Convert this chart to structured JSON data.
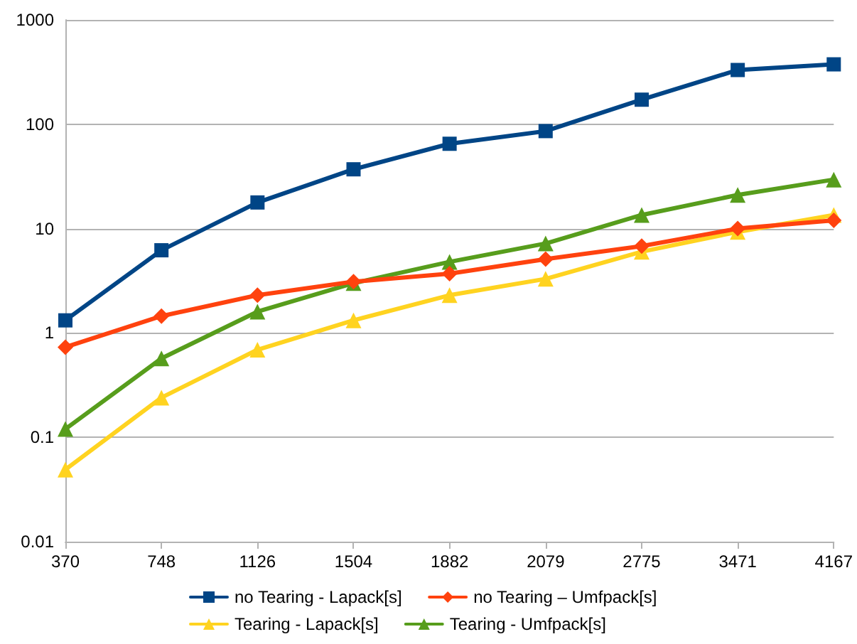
{
  "chart_data": {
    "type": "line",
    "categories": [
      "370",
      "748",
      "1126",
      "1504",
      "1882",
      "2079",
      "2775",
      "3471",
      "4167"
    ],
    "series": [
      {
        "name": "no Tearing - Lapack[s]",
        "color": "#004586",
        "marker": "square",
        "values": [
          1.32,
          6.2,
          17.8,
          37,
          65,
          86,
          172,
          331,
          375
        ]
      },
      {
        "name": "no Tearing – Umfpack[s]",
        "color": "#ff420e",
        "marker": "diamond",
        "values": [
          0.73,
          1.45,
          2.3,
          3.1,
          3.7,
          5.1,
          6.8,
          10,
          12
        ]
      },
      {
        "name": "Tearing - Lapack[s]",
        "color": "#ffd320",
        "marker": "triangle",
        "values": [
          0.049,
          0.24,
          0.69,
          1.32,
          2.3,
          3.3,
          6,
          9.3,
          13.5
        ]
      },
      {
        "name": "Tearing - Umfpack[s]",
        "color": "#579d1c",
        "marker": "triangle",
        "values": [
          0.12,
          0.57,
          1.6,
          3.0,
          4.8,
          7.2,
          13.5,
          21,
          29.5
        ]
      }
    ],
    "log": "y",
    "ylim": [
      0.01,
      1000
    ],
    "yticks": [
      0.01,
      0.1,
      1,
      10,
      100,
      1000
    ],
    "grid": "y",
    "legend": "bottom",
    "line_style": "solid"
  }
}
